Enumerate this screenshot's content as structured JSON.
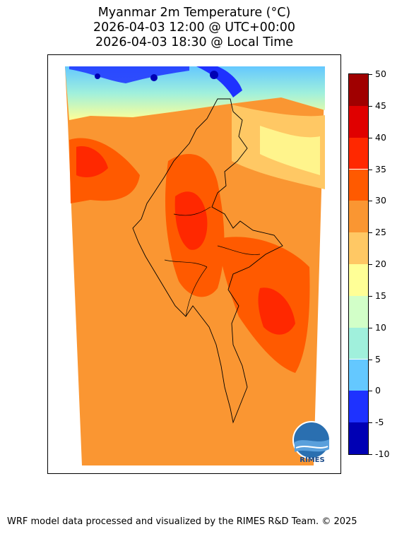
{
  "title": {
    "line1": "Myanmar 2m Temperature (°C)",
    "line2": "2026-04-03 12:00 @ UTC+00:00",
    "line3": "2026-04-03 18:30 @ Local Time"
  },
  "colorbar": {
    "ticks": [
      "50",
      "45",
      "40",
      "35",
      "30",
      "25",
      "20",
      "15",
      "10",
      "5",
      "0",
      "-5",
      "-10"
    ],
    "bands": [
      {
        "from": 45,
        "to": 50,
        "color": "#a00000"
      },
      {
        "from": 40,
        "to": 45,
        "color": "#e00000"
      },
      {
        "from": 35,
        "to": 40,
        "color": "#ff2800"
      },
      {
        "from": 30,
        "to": 35,
        "color": "#ff5a00"
      },
      {
        "from": 25,
        "to": 30,
        "color": "#fa9632"
      },
      {
        "from": 20,
        "to": 25,
        "color": "#ffc864"
      },
      {
        "from": 15,
        "to": 20,
        "color": "#ffff96"
      },
      {
        "from": 10,
        "to": 15,
        "color": "#d2ffc8"
      },
      {
        "from": 5,
        "to": 10,
        "color": "#a0f0dc"
      },
      {
        "from": 0,
        "to": 5,
        "color": "#64c8ff"
      },
      {
        "from": -5,
        "to": 0,
        "color": "#1e32ff"
      },
      {
        "from": -10,
        "to": -5,
        "color": "#0000b4"
      }
    ]
  },
  "logo": {
    "text": "RIMES"
  },
  "footer": "WRF model data processed and visualized by the RIMES R&D Team. © 2025"
}
